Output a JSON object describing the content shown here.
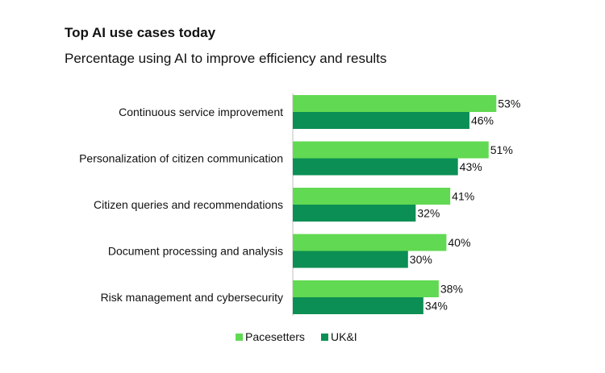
{
  "chart_data": {
    "type": "bar",
    "orientation": "horizontal",
    "title": "Top AI use cases today",
    "subtitle": "Percentage using AI to improve efficiency and results",
    "categories": [
      "Continuous service improvement",
      "Personalization of citizen communication",
      "Citizen queries and recommendations",
      "Document processing and analysis",
      "Risk management and cybersecurity"
    ],
    "series": [
      {
        "name": "Pacesetters",
        "color": "#61d952",
        "values": [
          53,
          51,
          41,
          40,
          38
        ],
        "labels": [
          "53%",
          "51%",
          "41%",
          "40%",
          "38%"
        ]
      },
      {
        "name": "UK&I",
        "color": "#0b8f54",
        "values": [
          46,
          43,
          32,
          30,
          34
        ],
        "labels": [
          "46%",
          "43%",
          "32%",
          "30%",
          "34%"
        ]
      }
    ],
    "xlim": [
      0,
      60
    ],
    "legend_position": "bottom-center",
    "grid": false
  }
}
